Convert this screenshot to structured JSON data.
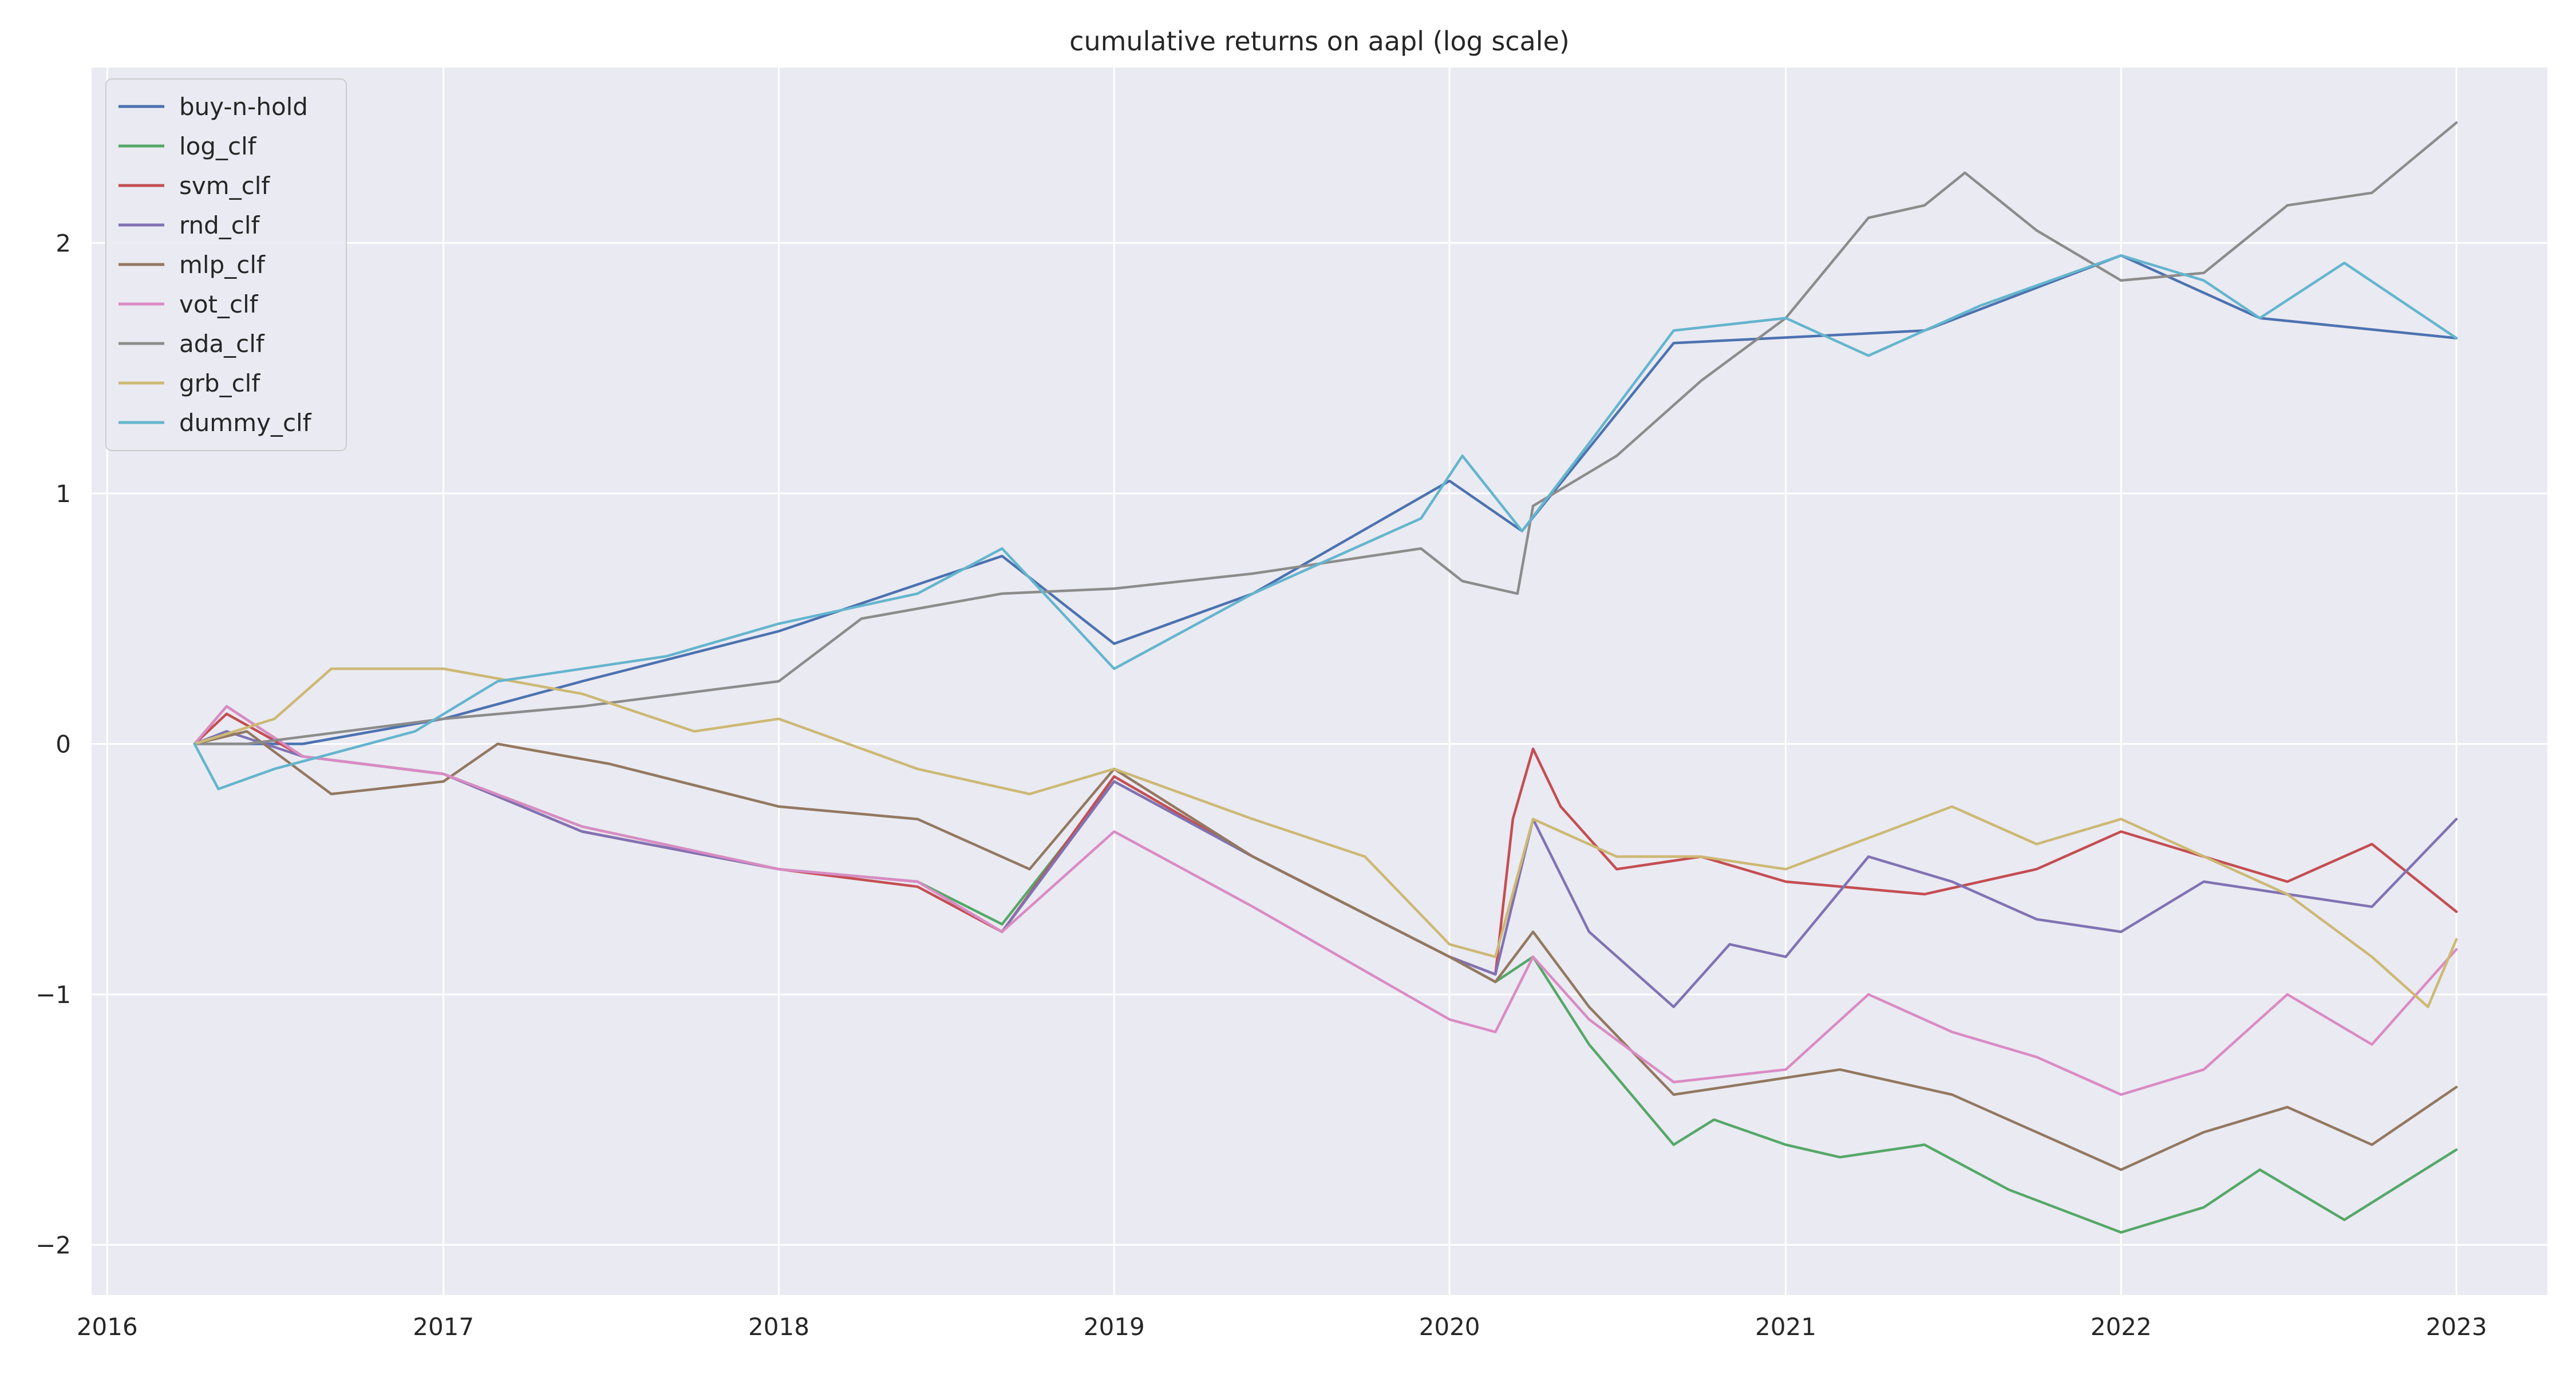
{
  "chart_data": {
    "type": "line",
    "title": "cumulative returns on aapl (log scale)",
    "xlabel": "",
    "ylabel": "",
    "x_axis": {
      "kind": "date",
      "range": [
        "2015-12-15",
        "2023-04-10"
      ],
      "ticks": [
        {
          "value": "2016-01-01",
          "label": "2016"
        },
        {
          "value": "2017-01-01",
          "label": "2017"
        },
        {
          "value": "2018-01-01",
          "label": "2018"
        },
        {
          "value": "2019-01-01",
          "label": "2019"
        },
        {
          "value": "2020-01-01",
          "label": "2020"
        },
        {
          "value": "2021-01-01",
          "label": "2021"
        },
        {
          "value": "2022-01-01",
          "label": "2022"
        },
        {
          "value": "2023-01-01",
          "label": "2023"
        }
      ]
    },
    "y_axis": {
      "range": [
        -2.2,
        2.7
      ],
      "ticks": [
        {
          "value": -2,
          "label": "−2"
        },
        {
          "value": -1,
          "label": "−1"
        },
        {
          "value": 0,
          "label": "0"
        },
        {
          "value": 1,
          "label": "1"
        },
        {
          "value": 2,
          "label": "2"
        }
      ]
    },
    "grid": true,
    "legend_placement": "top-left",
    "series": [
      {
        "name": "buy-n-hold",
        "color": "#4c72b0",
        "points": [
          [
            "2016-04-05",
            0.0
          ],
          [
            "2016-08-01",
            0.0
          ],
          [
            "2017-01-01",
            0.1
          ],
          [
            "2017-06-01",
            0.25
          ],
          [
            "2018-01-01",
            0.45
          ],
          [
            "2018-09-01",
            0.75
          ],
          [
            "2019-01-01",
            0.4
          ],
          [
            "2019-06-01",
            0.6
          ],
          [
            "2020-01-01",
            1.05
          ],
          [
            "2020-03-20",
            0.85
          ],
          [
            "2020-09-01",
            1.6
          ],
          [
            "2021-06-01",
            1.65
          ],
          [
            "2022-01-01",
            1.95
          ],
          [
            "2022-06-01",
            1.7
          ],
          [
            "2023-01-01",
            1.62
          ]
        ]
      },
      {
        "name": "log_clf",
        "color": "#55a868",
        "points": [
          [
            "2016-04-05",
            0.0
          ],
          [
            "2016-05-10",
            0.15
          ],
          [
            "2016-08-01",
            -0.05
          ],
          [
            "2017-01-01",
            -0.12
          ],
          [
            "2017-06-01",
            -0.33
          ],
          [
            "2018-01-01",
            -0.5
          ],
          [
            "2018-06-01",
            -0.55
          ],
          [
            "2018-09-01",
            -0.72
          ],
          [
            "2019-01-01",
            -0.15
          ],
          [
            "2019-06-01",
            -0.45
          ],
          [
            "2020-01-01",
            -0.85
          ],
          [
            "2020-02-20",
            -0.95
          ],
          [
            "2020-04-01",
            -0.85
          ],
          [
            "2020-06-01",
            -1.2
          ],
          [
            "2020-09-01",
            -1.6
          ],
          [
            "2020-10-15",
            -1.5
          ],
          [
            "2021-01-01",
            -1.6
          ],
          [
            "2021-03-01",
            -1.65
          ],
          [
            "2021-06-01",
            -1.6
          ],
          [
            "2021-09-01",
            -1.78
          ],
          [
            "2022-01-01",
            -1.95
          ],
          [
            "2022-04-01",
            -1.85
          ],
          [
            "2022-06-01",
            -1.7
          ],
          [
            "2022-09-01",
            -1.9
          ],
          [
            "2023-01-01",
            -1.62
          ]
        ]
      },
      {
        "name": "svm_clf",
        "color": "#c44e52",
        "points": [
          [
            "2016-04-05",
            0.0
          ],
          [
            "2016-05-10",
            0.12
          ],
          [
            "2016-08-01",
            -0.05
          ],
          [
            "2017-01-01",
            -0.12
          ],
          [
            "2017-06-01",
            -0.35
          ],
          [
            "2018-01-01",
            -0.5
          ],
          [
            "2018-06-01",
            -0.57
          ],
          [
            "2018-09-01",
            -0.75
          ],
          [
            "2019-01-01",
            -0.13
          ],
          [
            "2019-06-01",
            -0.45
          ],
          [
            "2020-01-01",
            -0.85
          ],
          [
            "2020-02-20",
            -0.92
          ],
          [
            "2020-03-10",
            -0.3
          ],
          [
            "2020-04-01",
            -0.02
          ],
          [
            "2020-05-01",
            -0.25
          ],
          [
            "2020-07-01",
            -0.5
          ],
          [
            "2020-10-01",
            -0.45
          ],
          [
            "2021-01-01",
            -0.55
          ],
          [
            "2021-06-01",
            -0.6
          ],
          [
            "2021-10-01",
            -0.5
          ],
          [
            "2022-01-01",
            -0.35
          ],
          [
            "2022-04-01",
            -0.45
          ],
          [
            "2022-07-01",
            -0.55
          ],
          [
            "2022-10-01",
            -0.4
          ],
          [
            "2023-01-01",
            -0.67
          ]
        ]
      },
      {
        "name": "rnd_clf",
        "color": "#8172b3",
        "points": [
          [
            "2016-04-05",
            0.0
          ],
          [
            "2016-05-10",
            0.05
          ],
          [
            "2016-08-01",
            -0.05
          ],
          [
            "2017-01-01",
            -0.12
          ],
          [
            "2017-06-01",
            -0.35
          ],
          [
            "2018-01-01",
            -0.5
          ],
          [
            "2018-06-01",
            -0.55
          ],
          [
            "2018-09-01",
            -0.75
          ],
          [
            "2019-01-01",
            -0.15
          ],
          [
            "2019-06-01",
            -0.45
          ],
          [
            "2020-01-01",
            -0.85
          ],
          [
            "2020-02-20",
            -0.92
          ],
          [
            "2020-04-01",
            -0.3
          ],
          [
            "2020-06-01",
            -0.75
          ],
          [
            "2020-09-01",
            -1.05
          ],
          [
            "2020-11-01",
            -0.8
          ],
          [
            "2021-01-01",
            -0.85
          ],
          [
            "2021-04-01",
            -0.45
          ],
          [
            "2021-07-01",
            -0.55
          ],
          [
            "2021-10-01",
            -0.7
          ],
          [
            "2022-01-01",
            -0.75
          ],
          [
            "2022-04-01",
            -0.55
          ],
          [
            "2022-07-01",
            -0.6
          ],
          [
            "2022-10-01",
            -0.65
          ],
          [
            "2023-01-01",
            -0.3
          ]
        ]
      },
      {
        "name": "mlp_clf",
        "color": "#937860",
        "points": [
          [
            "2016-04-05",
            0.0
          ],
          [
            "2016-06-01",
            0.05
          ],
          [
            "2016-09-01",
            -0.2
          ],
          [
            "2017-01-01",
            -0.15
          ],
          [
            "2017-03-01",
            0.0
          ],
          [
            "2017-07-01",
            -0.08
          ],
          [
            "2018-01-01",
            -0.25
          ],
          [
            "2018-06-01",
            -0.3
          ],
          [
            "2018-10-01",
            -0.5
          ],
          [
            "2019-01-01",
            -0.1
          ],
          [
            "2019-06-01",
            -0.45
          ],
          [
            "2020-01-01",
            -0.85
          ],
          [
            "2020-02-20",
            -0.95
          ],
          [
            "2020-04-01",
            -0.75
          ],
          [
            "2020-06-01",
            -1.05
          ],
          [
            "2020-09-01",
            -1.4
          ],
          [
            "2020-12-01",
            -1.35
          ],
          [
            "2021-03-01",
            -1.3
          ],
          [
            "2021-07-01",
            -1.4
          ],
          [
            "2021-10-01",
            -1.55
          ],
          [
            "2022-01-01",
            -1.7
          ],
          [
            "2022-04-01",
            -1.55
          ],
          [
            "2022-07-01",
            -1.45
          ],
          [
            "2022-10-01",
            -1.6
          ],
          [
            "2023-01-01",
            -1.37
          ]
        ]
      },
      {
        "name": "vot_clf",
        "color": "#da8bc3",
        "points": [
          [
            "2016-04-05",
            0.0
          ],
          [
            "2016-05-10",
            0.15
          ],
          [
            "2016-08-01",
            -0.05
          ],
          [
            "2017-01-01",
            -0.12
          ],
          [
            "2017-06-01",
            -0.33
          ],
          [
            "2018-01-01",
            -0.5
          ],
          [
            "2018-06-01",
            -0.55
          ],
          [
            "2018-09-01",
            -0.75
          ],
          [
            "2019-01-01",
            -0.35
          ],
          [
            "2019-06-01",
            -0.65
          ],
          [
            "2020-01-01",
            -1.1
          ],
          [
            "2020-02-20",
            -1.15
          ],
          [
            "2020-04-01",
            -0.85
          ],
          [
            "2020-06-01",
            -1.1
          ],
          [
            "2020-09-01",
            -1.35
          ],
          [
            "2021-01-01",
            -1.3
          ],
          [
            "2021-04-01",
            -1.0
          ],
          [
            "2021-07-01",
            -1.15
          ],
          [
            "2021-10-01",
            -1.25
          ],
          [
            "2022-01-01",
            -1.4
          ],
          [
            "2022-04-01",
            -1.3
          ],
          [
            "2022-07-01",
            -1.0
          ],
          [
            "2022-10-01",
            -1.2
          ],
          [
            "2023-01-01",
            -0.82
          ]
        ]
      },
      {
        "name": "ada_clf",
        "color": "#8c8c8c",
        "points": [
          [
            "2016-04-05",
            0.0
          ],
          [
            "2016-06-01",
            0.0
          ],
          [
            "2017-01-01",
            0.1
          ],
          [
            "2017-06-01",
            0.15
          ],
          [
            "2018-01-01",
            0.25
          ],
          [
            "2018-04-01",
            0.5
          ],
          [
            "2018-09-01",
            0.6
          ],
          [
            "2019-01-01",
            0.62
          ],
          [
            "2019-06-01",
            0.68
          ],
          [
            "2019-12-01",
            0.78
          ],
          [
            "2020-01-15",
            0.65
          ],
          [
            "2020-03-15",
            0.6
          ],
          [
            "2020-04-01",
            0.95
          ],
          [
            "2020-07-01",
            1.15
          ],
          [
            "2020-10-01",
            1.45
          ],
          [
            "2021-01-01",
            1.7
          ],
          [
            "2021-04-01",
            2.1
          ],
          [
            "2021-06-01",
            2.15
          ],
          [
            "2021-07-15",
            2.28
          ],
          [
            "2021-10-01",
            2.05
          ],
          [
            "2022-01-01",
            1.85
          ],
          [
            "2022-04-01",
            1.88
          ],
          [
            "2022-07-01",
            2.15
          ],
          [
            "2022-10-01",
            2.2
          ],
          [
            "2023-01-01",
            2.48
          ]
        ]
      },
      {
        "name": "grb_clf",
        "color": "#ccb974",
        "points": [
          [
            "2016-04-05",
            0.0
          ],
          [
            "2016-07-01",
            0.1
          ],
          [
            "2016-09-01",
            0.3
          ],
          [
            "2017-01-01",
            0.3
          ],
          [
            "2017-06-01",
            0.2
          ],
          [
            "2017-10-01",
            0.05
          ],
          [
            "2018-01-01",
            0.1
          ],
          [
            "2018-06-01",
            -0.1
          ],
          [
            "2018-10-01",
            -0.2
          ],
          [
            "2019-01-01",
            -0.1
          ],
          [
            "2019-06-01",
            -0.3
          ],
          [
            "2019-10-01",
            -0.45
          ],
          [
            "2020-01-01",
            -0.8
          ],
          [
            "2020-02-20",
            -0.85
          ],
          [
            "2020-04-01",
            -0.3
          ],
          [
            "2020-07-01",
            -0.45
          ],
          [
            "2020-10-01",
            -0.45
          ],
          [
            "2021-01-01",
            -0.5
          ],
          [
            "2021-07-01",
            -0.25
          ],
          [
            "2021-10-01",
            -0.4
          ],
          [
            "2022-01-01",
            -0.3
          ],
          [
            "2022-07-01",
            -0.6
          ],
          [
            "2022-10-01",
            -0.85
          ],
          [
            "2022-12-01",
            -1.05
          ],
          [
            "2023-01-01",
            -0.78
          ]
        ]
      },
      {
        "name": "dummy_clf",
        "color": "#64b5cd",
        "points": [
          [
            "2016-04-05",
            0.0
          ],
          [
            "2016-05-01",
            -0.18
          ],
          [
            "2016-07-01",
            -0.1
          ],
          [
            "2016-12-01",
            0.05
          ],
          [
            "2017-03-01",
            0.25
          ],
          [
            "2017-09-01",
            0.35
          ],
          [
            "2018-01-01",
            0.48
          ],
          [
            "2018-06-01",
            0.6
          ],
          [
            "2018-09-01",
            0.78
          ],
          [
            "2019-01-01",
            0.3
          ],
          [
            "2019-06-01",
            0.6
          ],
          [
            "2019-12-01",
            0.9
          ],
          [
            "2020-01-15",
            1.15
          ],
          [
            "2020-03-20",
            0.85
          ],
          [
            "2020-06-01",
            1.2
          ],
          [
            "2020-09-01",
            1.65
          ],
          [
            "2021-01-01",
            1.7
          ],
          [
            "2021-04-01",
            1.55
          ],
          [
            "2021-08-01",
            1.75
          ],
          [
            "2022-01-01",
            1.95
          ],
          [
            "2022-04-01",
            1.85
          ],
          [
            "2022-06-01",
            1.7
          ],
          [
            "2022-09-01",
            1.92
          ],
          [
            "2023-01-01",
            1.62
          ]
        ]
      }
    ]
  }
}
